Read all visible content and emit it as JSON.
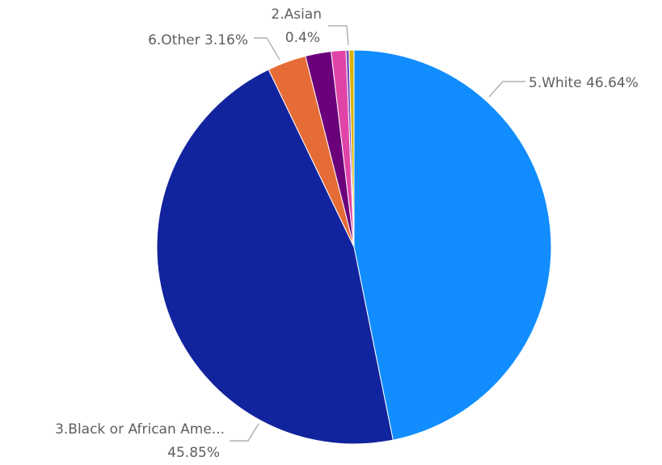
{
  "chart_data": {
    "type": "pie",
    "title": "",
    "slices": [
      {
        "name": "5.White",
        "value": 46.64,
        "color": "#118dff"
      },
      {
        "name": "3.Black or African Ame...",
        "value": 45.85,
        "color": "#12239e"
      },
      {
        "name": "6.Other",
        "value": 3.16,
        "color": "#e66c37"
      },
      {
        "name": "",
        "value": 2.1,
        "color": "#6b007b"
      },
      {
        "name": "",
        "value": 1.2,
        "color": "#e044a7"
      },
      {
        "name": "",
        "value": 0.25,
        "color": "#744ec2"
      },
      {
        "name": "2.Asian",
        "value": 0.4,
        "color": "#d9b300"
      }
    ],
    "labels": {
      "white": {
        "name": "5.White",
        "pct": "46.64%"
      },
      "black": {
        "name": "3.Black or African Ame...",
        "pct": "45.85%"
      },
      "other": {
        "name": "6.Other",
        "pct": "3.16%"
      },
      "asian": {
        "name": "2.Asian",
        "pct": "0.4%"
      }
    }
  }
}
